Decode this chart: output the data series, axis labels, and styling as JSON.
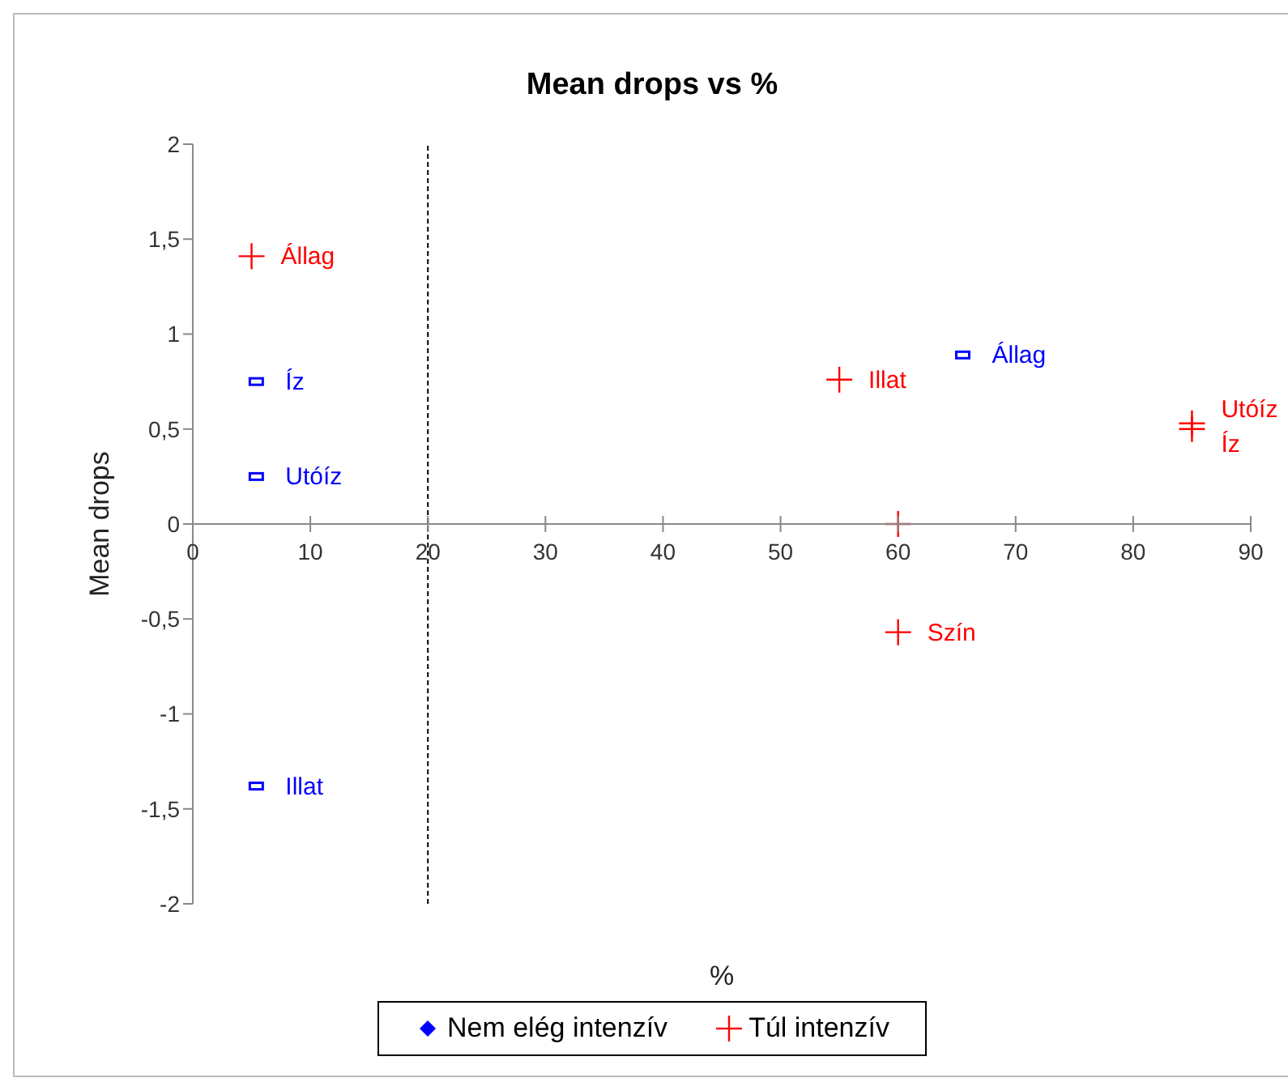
{
  "chart_data": {
    "type": "scatter",
    "title": "Mean drops vs %",
    "xlabel": "%",
    "ylabel": "Mean drops",
    "series": [
      {
        "name": "Nem elég intenzív",
        "color": "#0000ff",
        "marker": "square",
        "x": [
          5.4,
          5.4,
          5.4,
          65.5
        ],
        "values": [
          0.75,
          0.25,
          -1.38,
          0.89
        ]
      },
      {
        "name": "Túl intenzív",
        "color": "#ff0000",
        "marker": "cross",
        "x": [
          5,
          55,
          60,
          60,
          85,
          85
        ],
        "values": [
          1.41,
          0.76,
          0,
          -0.57,
          0.53,
          0.5
        ]
      }
    ],
    "annotations": [
      {
        "text": "Íz",
        "x": 5.4,
        "y": 0.75
      },
      {
        "text": "Utóíz",
        "x": 5.4,
        "y": 0.25
      },
      {
        "text": "Illat",
        "x": 5.4,
        "y": -1.38
      },
      {
        "text": "Állag",
        "x": 65.5,
        "y": 0.89
      },
      {
        "text": "Állag",
        "x": 5,
        "y": 1.41
      },
      {
        "text": "Illat",
        "x": 55,
        "y": 0.76
      },
      {
        "text": "Szín",
        "x": 60,
        "y": -0.57
      },
      {
        "text": "Utóíz",
        "x": 85,
        "y": 0.53
      },
      {
        "text": "Íz",
        "x": 85,
        "y": 0.5
      }
    ],
    "ref_lines": [
      {
        "axis": "x",
        "value": 20,
        "color": "#000000",
        "line_style": "dashed"
      }
    ],
    "xlim": [
      0,
      90
    ],
    "xticks": [
      0,
      10,
      20,
      30,
      40,
      50,
      60,
      70,
      80,
      90
    ],
    "ylim": [
      -2,
      2
    ],
    "yticks": [
      {
        "value": -2,
        "label": "-2"
      },
      {
        "value": -1.5,
        "label": "-1,5"
      },
      {
        "value": -1,
        "label": "-1"
      },
      {
        "value": -0.5,
        "label": "-0,5"
      },
      {
        "value": 0,
        "label": "0"
      },
      {
        "value": 0.5,
        "label": "0,5"
      },
      {
        "value": 1,
        "label": "1"
      },
      {
        "value": 1.5,
        "label": "1,5"
      },
      {
        "value": 2,
        "label": "2"
      }
    ],
    "grid": false,
    "legend": "bottom"
  }
}
